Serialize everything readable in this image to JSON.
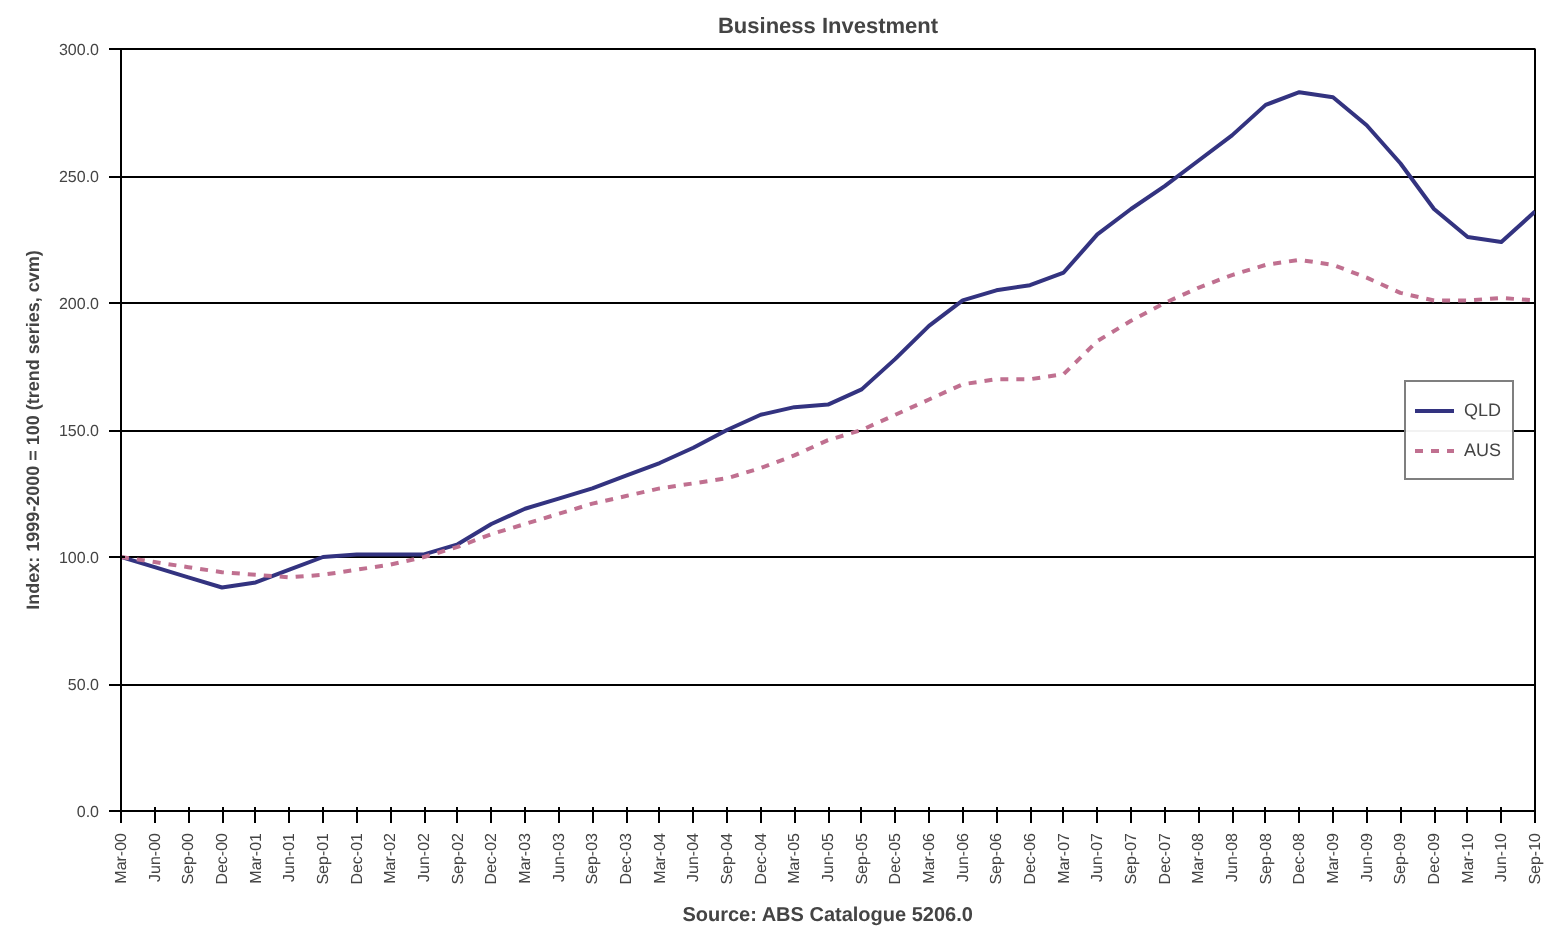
{
  "chart_data": {
    "type": "line",
    "title": "Business Investment",
    "ylabel": "Index: 1999-2000 = 100 (trend series, cvm)",
    "annotations": [
      "Source: ABS Catalogue 5206.0"
    ],
    "categories": [
      "Mar-00",
      "Jun-00",
      "Sep-00",
      "Dec-00",
      "Mar-01",
      "Jun-01",
      "Sep-01",
      "Dec-01",
      "Mar-02",
      "Jun-02",
      "Sep-02",
      "Dec-02",
      "Mar-03",
      "Jun-03",
      "Sep-03",
      "Dec-03",
      "Mar-04",
      "Jun-04",
      "Sep-04",
      "Dec-04",
      "Mar-05",
      "Jun-05",
      "Sep-05",
      "Dec-05",
      "Mar-06",
      "Jun-06",
      "Sep-06",
      "Dec-06",
      "Mar-07",
      "Jun-07",
      "Sep-07",
      "Dec-07",
      "Mar-08",
      "Jun-08",
      "Sep-08",
      "Dec-08",
      "Mar-09",
      "Jun-09",
      "Sep-09",
      "Dec-09",
      "Mar-10",
      "Jun-10",
      "Sep-10"
    ],
    "series": [
      {
        "name": "QLD",
        "color": "#333380",
        "line_style": "solid",
        "values": [
          100,
          96,
          92,
          88,
          90,
          95,
          100,
          101,
          101,
          101,
          105,
          113,
          119,
          123,
          127,
          132,
          137,
          143,
          150,
          156,
          159,
          160,
          166,
          178,
          191,
          201,
          205,
          207,
          212,
          227,
          237,
          246,
          256,
          266,
          278,
          283,
          281,
          270,
          255,
          237,
          226,
          224,
          236
        ]
      },
      {
        "name": "AUS",
        "color": "#c07090",
        "line_style": "dashed",
        "values": [
          100,
          98,
          96,
          94,
          93,
          92,
          93,
          95,
          97,
          100,
          104,
          109,
          113,
          117,
          121,
          124,
          127,
          129,
          131,
          135,
          140,
          146,
          150,
          156,
          162,
          168,
          170,
          170,
          172,
          185,
          193,
          200,
          206,
          211,
          215,
          217,
          215,
          210,
          204,
          201,
          201,
          202,
          201
        ]
      }
    ],
    "ylim": [
      0,
      300
    ],
    "yticks": [
      {
        "value": 0,
        "label": "0.0"
      },
      {
        "value": 50,
        "label": "50.0"
      },
      {
        "value": 100,
        "label": "100.0"
      },
      {
        "value": 150,
        "label": "150.0"
      },
      {
        "value": 200,
        "label": "200.0"
      },
      {
        "value": 250,
        "label": "250.0"
      },
      {
        "value": 300,
        "label": "300.0"
      }
    ],
    "grid": "y",
    "legend": "right"
  }
}
